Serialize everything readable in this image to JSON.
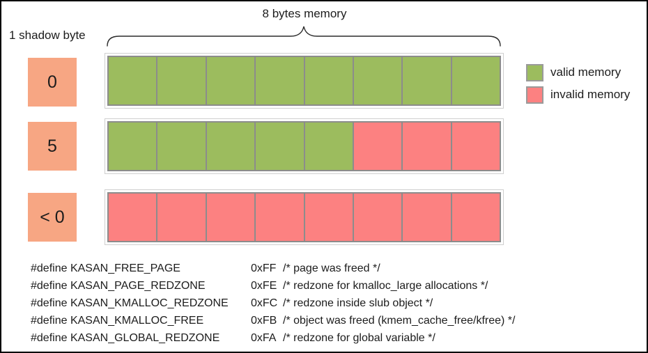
{
  "diagram": {
    "shadow_byte_label": "1 shadow byte",
    "memory_label": "8 bytes memory"
  },
  "colors": {
    "valid": "#9CBC5E",
    "invalid": "#FC8181",
    "shadow": "#F7A683"
  },
  "rows": [
    {
      "shadow_value": "0",
      "cells": [
        "valid",
        "valid",
        "valid",
        "valid",
        "valid",
        "valid",
        "valid",
        "valid"
      ]
    },
    {
      "shadow_value": "5",
      "cells": [
        "valid",
        "valid",
        "valid",
        "valid",
        "valid",
        "invalid",
        "invalid",
        "invalid"
      ]
    },
    {
      "shadow_value": "< 0",
      "cells": [
        "invalid",
        "invalid",
        "invalid",
        "invalid",
        "invalid",
        "invalid",
        "invalid",
        "invalid"
      ]
    }
  ],
  "legend": [
    {
      "type": "valid",
      "label": "valid memory"
    },
    {
      "type": "invalid",
      "label": "invalid memory"
    }
  ],
  "defines": {
    "keyword": "#define",
    "entries": [
      {
        "macro": "KASAN_FREE_PAGE",
        "value": "0xFF",
        "comment": "/* page was freed */"
      },
      {
        "macro": "KASAN_PAGE_REDZONE",
        "value": "0xFE",
        "comment": "/* redzone for kmalloc_large allocations */"
      },
      {
        "macro": "KASAN_KMALLOC_REDZONE",
        "value": "0xFC",
        "comment": "/* redzone inside slub object */"
      },
      {
        "macro": "KASAN_KMALLOC_FREE",
        "value": "0xFB",
        "comment": "/* object was freed (kmem_cache_free/kfree) */"
      },
      {
        "macro": "KASAN_GLOBAL_REDZONE",
        "value": "0xFA",
        "comment": "/* redzone for global variable */"
      }
    ]
  }
}
